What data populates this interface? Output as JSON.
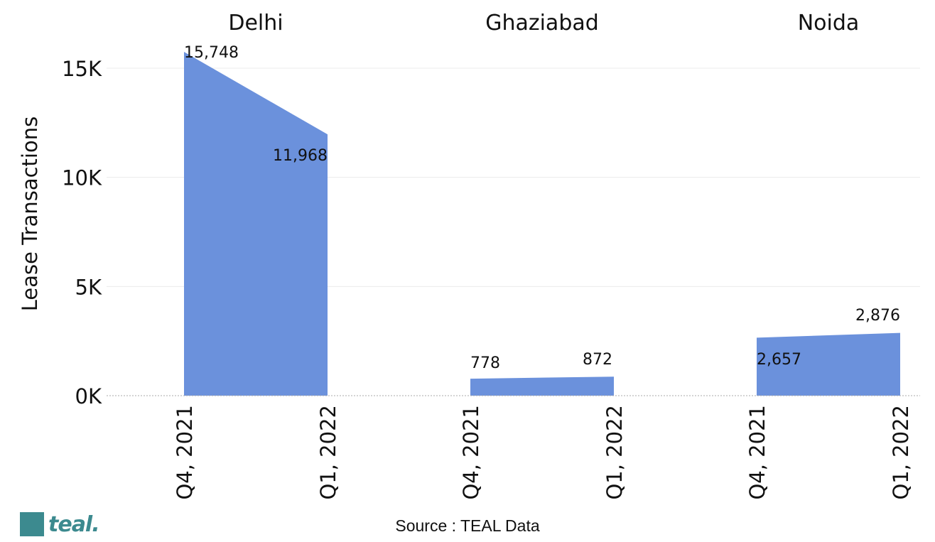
{
  "chart_data": {
    "type": "area",
    "ylabel": "Lease Transactions",
    "ylim": [
      0,
      16000
    ],
    "yticks": [
      0,
      5000,
      10000,
      15000
    ],
    "ytick_labels": [
      "0K",
      "5K",
      "10K",
      "15K"
    ],
    "grid": "horizontal",
    "color": "#6b91dc",
    "categories": [
      "Q4, 2021",
      "Q1, 2022"
    ],
    "panels": [
      {
        "title": "Delhi",
        "values": [
          15748,
          11968
        ],
        "labels": [
          "15,748",
          "11,968"
        ]
      },
      {
        "title": "Ghaziabad",
        "values": [
          778,
          872
        ],
        "labels": [
          "778",
          "872"
        ]
      },
      {
        "title": "Noida",
        "values": [
          2657,
          2876
        ],
        "labels": [
          "2,657",
          "2,876"
        ]
      }
    ]
  },
  "footer": {
    "source": "Source : TEAL Data",
    "logo_text": "teal."
  }
}
